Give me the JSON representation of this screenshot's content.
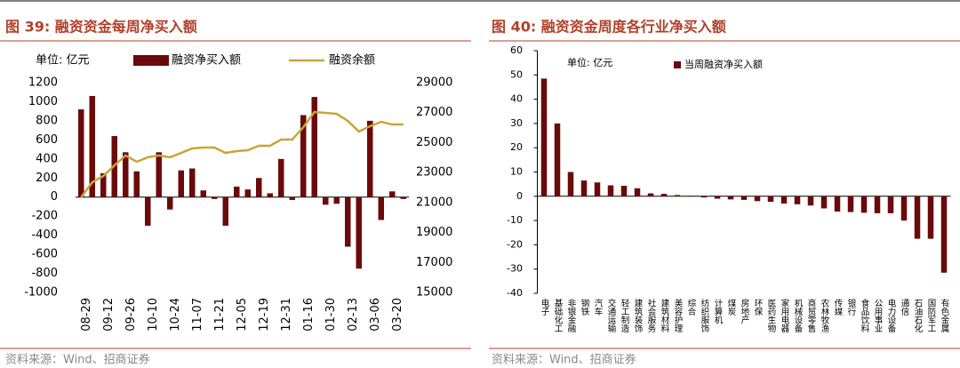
{
  "chart_data": [
    {
      "type": "bar",
      "title": "图 39:  融资资金每周净买入额",
      "unit": "单位: 亿元",
      "source": "资料来源：Wind、招商证券",
      "categories": [
        "08-29",
        null,
        "09-12",
        null,
        "09-26",
        null,
        "10-10",
        null,
        "10-24",
        null,
        "11-07",
        null,
        "11-21",
        null,
        "12-05",
        null,
        "12-19",
        null,
        "12-31",
        null,
        "01-16",
        null,
        "01-30",
        null,
        "02-13",
        null,
        "03-06",
        null,
        "03-20",
        null
      ],
      "series": [
        {
          "name": "融资净买入额",
          "type": "bar",
          "color": "#6b0a0a",
          "values": [
            920,
            1060,
            250,
            640,
            470,
            270,
            -300,
            470,
            -130,
            280,
            300,
            70,
            -20,
            -300,
            110,
            80,
            200,
            40,
            400,
            -30,
            860,
            1050,
            -80,
            -70,
            -520,
            -750,
            800,
            -240,
            60,
            -20
          ]
        },
        {
          "name": "融资余额",
          "type": "line",
          "axis": "y2",
          "color": "#c9a43a",
          "values": [
            21350,
            22350,
            22770,
            23480,
            24140,
            23720,
            24020,
            24140,
            24020,
            24310,
            24610,
            24670,
            24670,
            24310,
            24430,
            24490,
            24790,
            24790,
            25200,
            25200,
            26030,
            27040,
            26980,
            26920,
            26450,
            25740,
            26090,
            26390,
            26210,
            26210
          ]
        }
      ],
      "ylim": [
        -1000,
        1200
      ],
      "yticks": [
        -1000,
        -800,
        -600,
        -400,
        -200,
        0,
        200,
        400,
        600,
        800,
        1000,
        1200
      ],
      "y2lim": [
        15000,
        29000
      ],
      "y2ticks": [
        15000,
        17000,
        19000,
        21000,
        23000,
        25000,
        27000,
        29000
      ]
    },
    {
      "type": "bar",
      "title": "图 40:  融资资金周度各行业净买入额",
      "unit": "单位: 亿元",
      "source": "资料来源：Wind、招商证券",
      "categories": [
        "电子",
        "基础化工",
        "非银金融",
        "钢铁",
        "汽车",
        "交通运输",
        "轻工制造",
        "建筑装饰",
        "社会服务",
        "建筑材料",
        "美容护理",
        "综合",
        "纺织服饰",
        "计算机",
        "煤炭",
        "房地产",
        "环保",
        "医药生物",
        "家用电器",
        "机械设备",
        "商贸零售",
        "农林牧渔",
        "传媒",
        "银行",
        "食品饮料",
        "公用事业",
        "电力设备",
        "通信",
        "石油石化",
        "国防军工",
        "有色金属"
      ],
      "series": [
        {
          "name": "当周融资净买入额",
          "type": "bar",
          "color": "#6b0a0a",
          "values": [
            48.5,
            30,
            10,
            6.5,
            5.7,
            4.5,
            4.3,
            3.3,
            1.2,
            1,
            0.5,
            0.2,
            -0.5,
            -1,
            -1.3,
            -1.5,
            -2,
            -2.3,
            -3,
            -3.3,
            -3.8,
            -5,
            -6.3,
            -6.5,
            -6.8,
            -7,
            -7,
            -10,
            -17.5,
            -17.5,
            -31.5
          ]
        }
      ],
      "ylim": [
        -40,
        60
      ],
      "yticks": [
        -40,
        -30,
        -20,
        -10,
        0,
        10,
        20,
        30,
        40,
        50,
        60
      ]
    }
  ]
}
